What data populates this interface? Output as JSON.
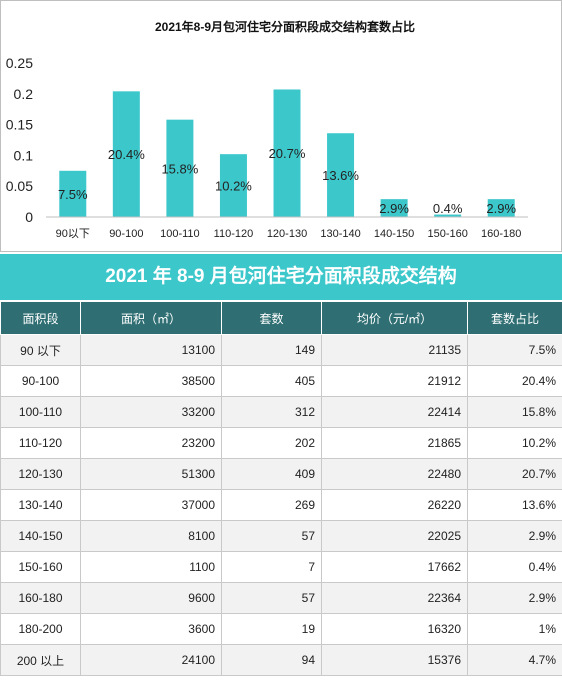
{
  "chart_data": {
    "type": "bar",
    "title": "2021年8-9月包河住宅分面积段成交结构套数占比",
    "categories": [
      "90以下",
      "90-100",
      "100-110",
      "110-120",
      "120-130",
      "130-140",
      "140-150",
      "150-160",
      "160-180"
    ],
    "values": [
      0.075,
      0.204,
      0.158,
      0.102,
      0.207,
      0.136,
      0.029,
      0.004,
      0.029
    ],
    "data_labels": [
      "7.5%",
      "20.4%",
      "15.8%",
      "10.2%",
      "20.7%",
      "13.6%",
      "2.9%",
      "0.4%",
      "2.9%"
    ],
    "yticks": [
      "0",
      "0.05",
      "0.1",
      "0.15",
      "0.2",
      "0.25"
    ],
    "ylim": [
      0,
      0.25
    ],
    "xlabel": "",
    "ylabel": "",
    "grid": false,
    "bar_color": "#3cc7cb"
  },
  "table": {
    "title": "2021 年 8-9 月包河住宅分面积段成交结构",
    "headers": [
      "面积段",
      "面积（㎡）",
      "套数",
      "均价（元/㎡）",
      "套数占比"
    ],
    "rows": [
      [
        "90 以下",
        "13100",
        "149",
        "21135",
        "7.5%"
      ],
      [
        "90-100",
        "38500",
        "405",
        "21912",
        "20.4%"
      ],
      [
        "100-110",
        "33200",
        "312",
        "22414",
        "15.8%"
      ],
      [
        "110-120",
        "23200",
        "202",
        "21865",
        "10.2%"
      ],
      [
        "120-130",
        "51300",
        "409",
        "22480",
        "20.7%"
      ],
      [
        "130-140",
        "37000",
        "269",
        "26220",
        "13.6%"
      ],
      [
        "140-150",
        "8100",
        "57",
        "22025",
        "2.9%"
      ],
      [
        "150-160",
        "1100",
        "7",
        "17662",
        "0.4%"
      ],
      [
        "160-180",
        "9600",
        "57",
        "22364",
        "2.9%"
      ],
      [
        "180-200",
        "3600",
        "19",
        "16320",
        "1%"
      ],
      [
        "200 以上",
        "24100",
        "94",
        "15376",
        "4.7%"
      ]
    ],
    "header_color": "#2f6f73",
    "title_color": "#3cc7cb"
  }
}
